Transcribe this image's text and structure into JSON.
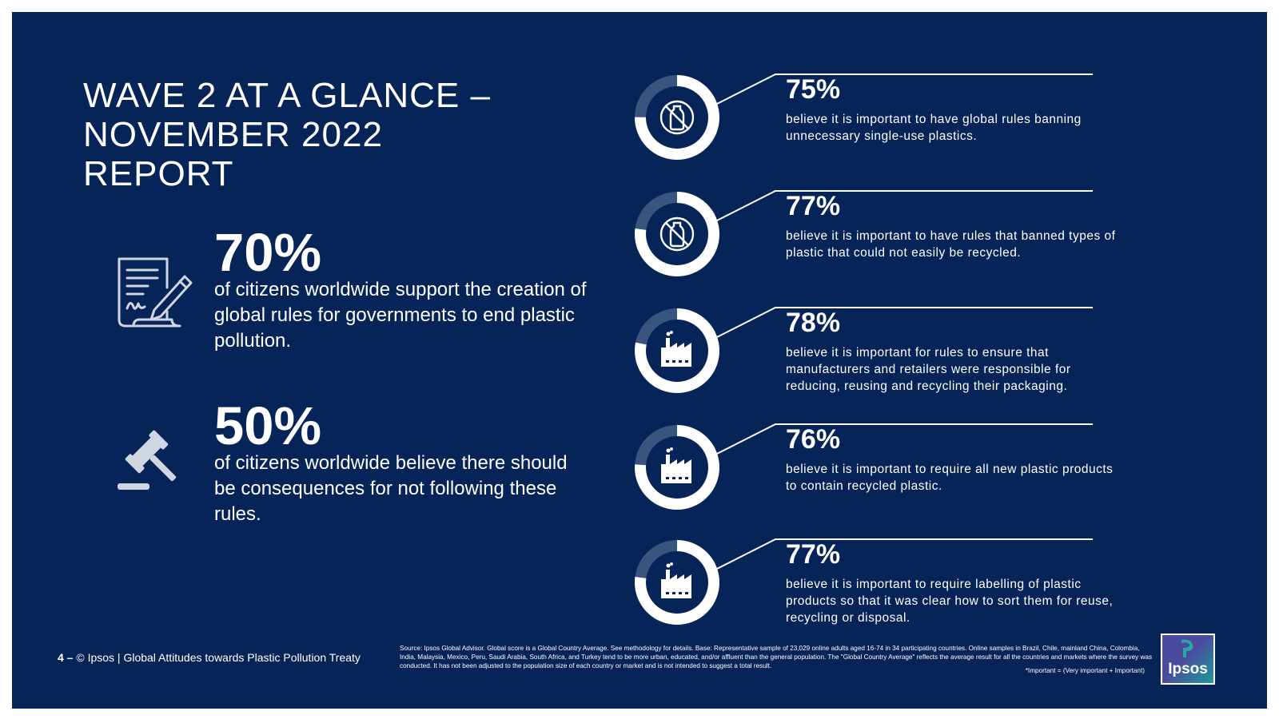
{
  "title_lines": [
    "WAVE 2 AT A GLANCE –",
    "NOVEMBER 2022",
    "REPORT"
  ],
  "left_stats": [
    {
      "percent": "70%",
      "text": "of citizens worldwide support the creation of global rules for governments to end plastic pollution.",
      "icon": "document-signature-icon"
    },
    {
      "percent": "50%",
      "text": "of citizens worldwide believe there should be consequences for not following these rules.",
      "icon": "gavel-icon"
    }
  ],
  "items": [
    {
      "percent": "75%",
      "value": 75,
      "text": "believe it is important to have global rules banning unnecessary single-use plastics.",
      "icon": "no-plastic-bottle-icon"
    },
    {
      "percent": "77%",
      "value": 77,
      "text": "believe it is important to have rules that banned types of plastic that could not easily be recycled.",
      "icon": "no-plastic-bottle-icon"
    },
    {
      "percent": "78%",
      "value": 78,
      "text": "believe it is important for rules to ensure that manufacturers and retailers were responsible for reducing, reusing and recycling their packaging.",
      "icon": "factory-icon"
    },
    {
      "percent": "76%",
      "value": 76,
      "text": "believe it is important to require all new plastic products to contain recycled plastic.",
      "icon": "factory-icon"
    },
    {
      "percent": "77%",
      "value": 77,
      "text": "believe it is important to require labelling of plastic products so that it was clear how to sort them for reuse, recycling or disposal.",
      "icon": "factory-icon"
    }
  ],
  "footer": {
    "page_number": "4 –",
    "text": "© Ipsos | Global Attitudes towards Plastic Pollution Treaty",
    "source": "Source: Ipsos Global Advisor. Global score is a Global Country Average. See methodology for details. Base: Representative sample of 23,029 online adults aged 16-74 in 34 participating countries. Online samples in Brazil, Chile, mainland China, Colombia, India, Malaysia, Mexico, Peru, Saudi Arabia, South Africa, and Turkey tend to be more urban, educated, and/or affluent than the general population. The \"Global Country Average\" reflects the average result for all the countries and markets where the survey was conducted. It has not been adjusted to the population size of each country or market and is not intended to suggest a total result.",
    "important_note": "*Important = (Very important + Important)",
    "logo_text": "Ipsos"
  },
  "colors": {
    "background": "#062458",
    "donut_track": "#3a5480",
    "donut_fill": "#ffffff",
    "text": "#ffffff"
  }
}
